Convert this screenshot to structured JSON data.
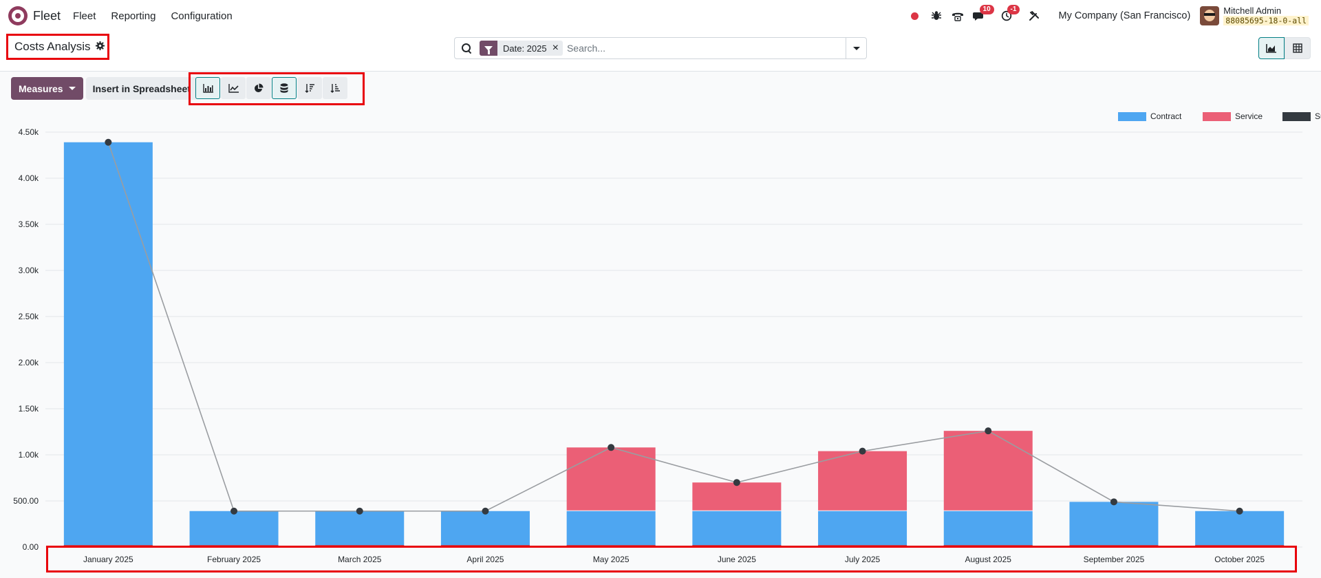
{
  "navbar": {
    "app_name": "Fleet",
    "menu": [
      "Fleet",
      "Reporting",
      "Configuration"
    ],
    "messages_badge": "10",
    "activities_badge": "-1",
    "company": "My Company (San Francisco)",
    "user_name": "Mitchell Admin",
    "database": "88085695-18-0-all",
    "icons": [
      "odoo-logo-icon",
      "record-dot-icon",
      "bug-icon",
      "phone-icon",
      "chat-icon",
      "clock-icon",
      "tools-icon"
    ]
  },
  "control_panel": {
    "title": "Costs Analysis",
    "facet_label": "Date: 2025",
    "search_placeholder": "Search...",
    "views": [
      "graph",
      "pivot"
    ]
  },
  "toolbar": {
    "measures_label": "Measures",
    "spreadsheet_label": "Insert in Spreadsheet",
    "chart_buttons": [
      "bar-chart",
      "line-chart",
      "pie-chart",
      "stacked",
      "descending",
      "ascending"
    ]
  },
  "colors": {
    "contract": "#4ea6f1",
    "service": "#eb5f76",
    "sum": "#343a40",
    "primary": "#714b67"
  },
  "chart_data": {
    "type": "bar",
    "stacked": true,
    "categories": [
      "January 2025",
      "February 2025",
      "March 2025",
      "April 2025",
      "May 2025",
      "June 2025",
      "July 2025",
      "August 2025",
      "September 2025",
      "October 2025"
    ],
    "series": [
      {
        "name": "Contract",
        "color": "#4ea6f1",
        "values": [
          4390,
          390,
          390,
          390,
          390,
          390,
          390,
          390,
          490,
          390
        ]
      },
      {
        "name": "Service",
        "color": "#eb5f76",
        "values": [
          0,
          0,
          0,
          0,
          690,
          310,
          650,
          870,
          0,
          0
        ]
      },
      {
        "name": "Sum",
        "type": "line",
        "color": "#343a40",
        "values": [
          4390,
          390,
          390,
          390,
          1080,
          700,
          1040,
          1260,
          490,
          390
        ]
      }
    ],
    "yticks": [
      "0.00",
      "500.00",
      "1.00k",
      "1.50k",
      "2.00k",
      "2.50k",
      "3.00k",
      "3.50k",
      "4.00k",
      "4.50k"
    ],
    "ylim": [
      0,
      4500
    ],
    "legend": "top-right",
    "grid": true
  }
}
